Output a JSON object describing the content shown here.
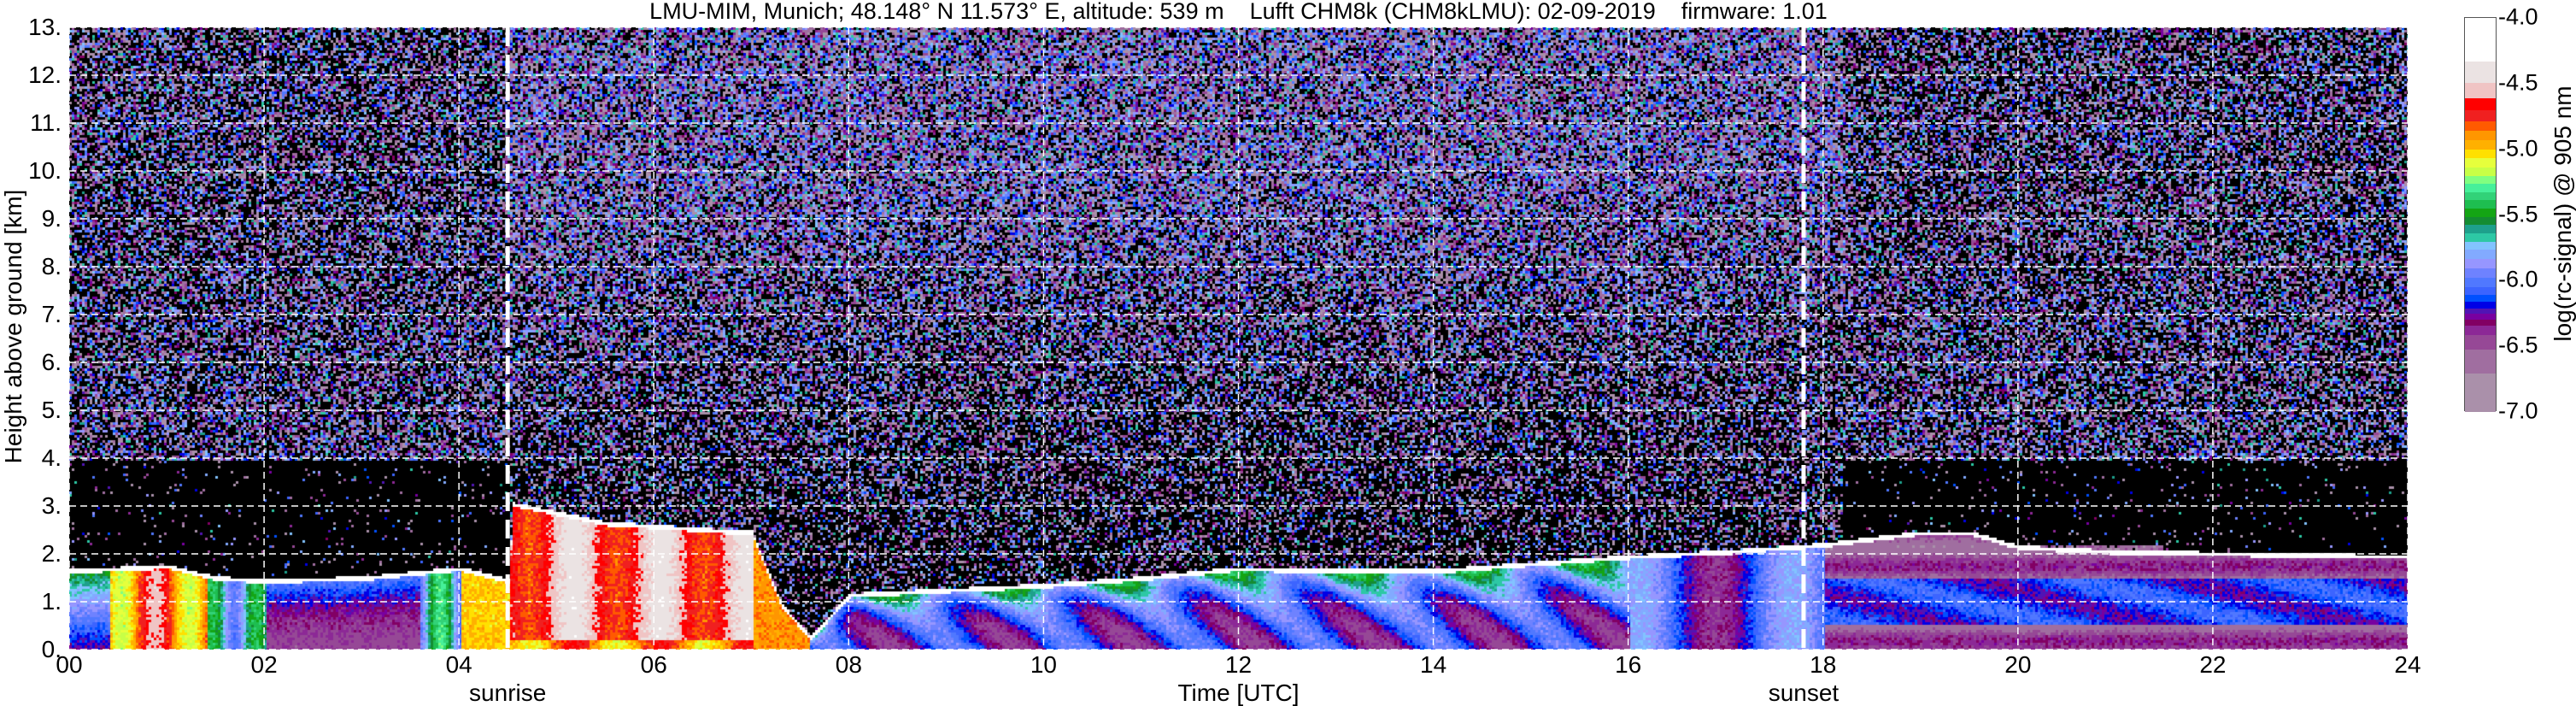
{
  "chart_data": {
    "type": "heatmap",
    "title": "LMU-MIM, Munich; 48.148° N 11.573° E, altitude: 539 m    Lufft CHM8k (CHM8kLMU): 02-09-2019    firmware: 1.01",
    "xlabel": "Time [UTC]",
    "ylabel": "Height above ground [km]",
    "xlim": [
      0,
      24
    ],
    "ylim": [
      0,
      13
    ],
    "x_ticks": [
      0,
      2,
      4,
      6,
      8,
      10,
      12,
      14,
      16,
      18,
      20,
      22,
      24
    ],
    "x_tick_labels": [
      "00",
      "02",
      "04",
      "06",
      "08",
      "10",
      "12",
      "14",
      "16",
      "18",
      "20",
      "22",
      "24"
    ],
    "y_ticks": [
      0,
      1,
      2,
      3,
      4,
      5,
      6,
      7,
      8,
      9,
      10,
      11,
      12,
      13
    ],
    "y_tick_labels": [
      "0.",
      "1.",
      "2.",
      "3.",
      "4.",
      "5.",
      "6.",
      "7.",
      "8.",
      "9.",
      "10.",
      "11.",
      "12.",
      "13."
    ],
    "grid": true,
    "annotations": [
      {
        "label": "sunrise",
        "x": 4.5
      },
      {
        "label": "sunset",
        "x": 17.8
      }
    ],
    "colorbar": {
      "label": "log(rc-signal) @ 905 nm",
      "range": [
        -7.0,
        -4.0
      ],
      "tick_values": [
        -4.0,
        -4.5,
        -5.0,
        -5.5,
        -6.0,
        -6.5,
        -7.0
      ],
      "tick_labels": [
        "-4.0",
        "-4.5",
        "-5.0",
        "-5.5",
        "-6.0",
        "-6.5",
        "-7.0"
      ],
      "bounds": [
        -4.0,
        -4.333,
        -4.493,
        -4.613,
        -4.702,
        -4.785,
        -4.861,
        -4.93,
        -5.0,
        -5.07,
        -5.137,
        -5.207,
        -5.265,
        -5.328,
        -5.389,
        -5.454,
        -5.515,
        -5.578,
        -5.637,
        -5.702,
        -5.765,
        -5.835,
        -5.909,
        -5.978,
        -6.048,
        -6.109,
        -6.163,
        -6.213,
        -6.252,
        -6.296,
        -6.343,
        -6.413,
        -6.522,
        -6.709,
        -7.0
      ],
      "colors": [
        "#ffffff",
        "#ebe3e3",
        "#f0c4c4",
        "#ff0000",
        "#f02020",
        "#ff5a00",
        "#ff9600",
        "#ffb000",
        "#ffe000",
        "#e6ff3c",
        "#c8ff46",
        "#80ff80",
        "#46f09a",
        "#32d278",
        "#1ebe50",
        "#14a514",
        "#148c32",
        "#1ea08c",
        "#2dc8a5",
        "#82c3ff",
        "#82aaff",
        "#9696ff",
        "#6e82ff",
        "#5078ff",
        "#3c64ff",
        "#0050ff",
        "#0000e6",
        "#5014b4",
        "#7800a0",
        "#820064",
        "#8c2896",
        "#964896",
        "#a06ea0",
        "#aa90aa"
      ]
    },
    "layer_top_km": {
      "time_h": [
        0,
        0.5,
        1.0,
        1.5,
        2.0,
        3.0,
        4.0,
        4.5,
        4.55,
        5.5,
        7.0,
        7.3,
        7.6,
        8.0,
        9.0,
        10.0,
        11.0,
        12.0,
        13.0,
        14.0,
        15.0,
        16.0,
        17.0,
        18.0,
        19.0,
        19.5,
        20.0,
        21.0,
        24.0
      ],
      "height_km": [
        1.7,
        1.75,
        1.8,
        1.55,
        1.5,
        1.55,
        1.75,
        1.5,
        3.1,
        2.7,
        2.5,
        1.0,
        0.3,
        1.2,
        1.3,
        1.4,
        1.55,
        1.75,
        1.7,
        1.7,
        1.85,
        2.0,
        2.1,
        2.25,
        2.5,
        2.5,
        2.2,
        2.1,
        2.0
      ]
    }
  }
}
